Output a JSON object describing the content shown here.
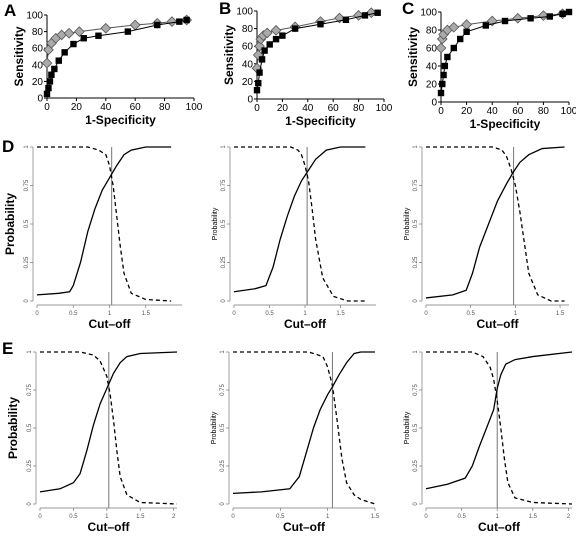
{
  "chart_data": [
    {
      "panel": "A",
      "type": "line",
      "xlabel": "1-Specificity",
      "ylabel": "Sensitivity",
      "xlim": [
        0,
        100
      ],
      "ylim": [
        0,
        100
      ],
      "xticks": [
        0,
        20,
        40,
        60,
        80,
        100
      ],
      "yticks": [
        0,
        20,
        40,
        60,
        80,
        100
      ],
      "series": [
        {
          "marker": "square",
          "color": "#000000",
          "x": [
            0,
            1,
            2,
            3,
            5,
            8,
            12,
            18,
            25,
            35,
            55,
            75,
            90,
            95
          ],
          "y": [
            5,
            12,
            20,
            28,
            35,
            45,
            55,
            65,
            72,
            75,
            80,
            88,
            92,
            94
          ]
        },
        {
          "marker": "diamond",
          "color": "#aaaaaa",
          "x": [
            0,
            1,
            3,
            6,
            10,
            15,
            22,
            40,
            60,
            75,
            85,
            95
          ],
          "y": [
            42,
            58,
            66,
            72,
            76,
            78,
            80,
            84,
            88,
            90,
            92,
            94
          ]
        }
      ]
    },
    {
      "panel": "B",
      "type": "line",
      "xlabel": "1-Specificity",
      "ylabel": "Sensitivity",
      "xlim": [
        0,
        100
      ],
      "ylim": [
        0,
        100
      ],
      "xticks": [
        0,
        20,
        40,
        60,
        80,
        100
      ],
      "yticks": [
        0,
        20,
        40,
        60,
        80,
        100
      ],
      "series": [
        {
          "marker": "square",
          "color": "#000000",
          "x": [
            0,
            1,
            2,
            4,
            6,
            10,
            15,
            20,
            30,
            50,
            70,
            85,
            95
          ],
          "y": [
            10,
            18,
            30,
            45,
            55,
            62,
            68,
            72,
            80,
            85,
            90,
            95,
            98
          ]
        },
        {
          "marker": "diamond",
          "color": "#aaaaaa",
          "x": [
            0,
            1,
            2,
            3,
            5,
            8,
            15,
            30,
            50,
            65,
            80,
            90
          ],
          "y": [
            35,
            50,
            60,
            68,
            72,
            75,
            78,
            82,
            88,
            92,
            95,
            98
          ]
        }
      ]
    },
    {
      "panel": "C",
      "type": "line",
      "xlabel": "1-Specificity",
      "ylabel": "Sensitivity",
      "xlim": [
        0,
        100
      ],
      "ylim": [
        0,
        100
      ],
      "xticks": [
        0,
        20,
        40,
        60,
        80,
        100
      ],
      "yticks": [
        0,
        20,
        40,
        60,
        80,
        100
      ],
      "series": [
        {
          "marker": "square",
          "color": "#000000",
          "x": [
            0,
            1,
            2,
            3,
            5,
            10,
            15,
            20,
            35,
            50,
            70,
            85,
            95,
            100
          ],
          "y": [
            10,
            20,
            30,
            40,
            50,
            60,
            70,
            78,
            85,
            90,
            93,
            95,
            98,
            100
          ]
        },
        {
          "marker": "diamond",
          "color": "#aaaaaa",
          "x": [
            0,
            1,
            2,
            5,
            10,
            20,
            40,
            60,
            80,
            95
          ],
          "y": [
            60,
            70,
            75,
            80,
            83,
            86,
            90,
            93,
            96,
            98
          ]
        }
      ]
    },
    {
      "panel": "D",
      "type": "line",
      "xlabel": "Cut–off",
      "ylabel": "Probability",
      "xlim": [
        0,
        2.0
      ],
      "ylim": [
        0,
        1
      ],
      "xticks": [
        0,
        0.5,
        1,
        1.5
      ],
      "yticks": [
        0,
        0.25,
        0.5,
        0.75,
        1
      ],
      "cutoff": 1.03,
      "series": [
        {
          "style": "solid",
          "x": [
            0,
            0.3,
            0.45,
            0.5,
            0.6,
            0.7,
            0.8,
            0.9,
            1.0,
            1.05,
            1.1,
            1.2,
            1.3,
            1.5,
            1.85
          ],
          "y": [
            0.04,
            0.05,
            0.06,
            0.1,
            0.25,
            0.45,
            0.6,
            0.72,
            0.8,
            0.84,
            0.88,
            0.95,
            0.98,
            1.0,
            1.0
          ]
        },
        {
          "style": "dashed",
          "x": [
            0,
            0.7,
            0.85,
            0.95,
            1.0,
            1.05,
            1.1,
            1.15,
            1.2,
            1.3,
            1.5,
            1.85
          ],
          "y": [
            1.0,
            1.0,
            0.98,
            0.95,
            0.88,
            0.75,
            0.55,
            0.35,
            0.18,
            0.05,
            0.01,
            0.0
          ]
        }
      ]
    },
    {
      "panel": "",
      "type": "line",
      "xlabel": "Cut–off",
      "ylabel": "Probability",
      "xlim": [
        0,
        2.0
      ],
      "ylim": [
        0,
        1
      ],
      "xticks": [
        0,
        0.5,
        1,
        1.5
      ],
      "yticks": [
        0,
        0.25,
        0.5,
        0.75,
        1
      ],
      "cutoff": 1.03,
      "series": [
        {
          "style": "solid",
          "x": [
            0,
            0.3,
            0.45,
            0.55,
            0.65,
            0.75,
            0.85,
            0.95,
            1.05,
            1.15,
            1.3,
            1.5,
            1.85
          ],
          "y": [
            0.06,
            0.08,
            0.1,
            0.22,
            0.4,
            0.55,
            0.68,
            0.78,
            0.85,
            0.92,
            0.98,
            1.0,
            1.0
          ]
        },
        {
          "style": "dashed",
          "x": [
            0,
            0.8,
            0.9,
            0.95,
            1.0,
            1.05,
            1.1,
            1.15,
            1.25,
            1.4,
            1.6,
            1.85
          ],
          "y": [
            1.0,
            1.0,
            0.98,
            0.95,
            0.88,
            0.78,
            0.6,
            0.4,
            0.15,
            0.03,
            0.0,
            0.0
          ]
        }
      ]
    },
    {
      "panel": "",
      "type": "line",
      "xlabel": "Cut–off",
      "ylabel": "Probability",
      "xlim": [
        0,
        1.6
      ],
      "ylim": [
        0,
        1
      ],
      "xticks": [
        0,
        0.5,
        1,
        1.5
      ],
      "yticks": [
        0,
        0.25,
        0.5,
        0.75,
        1
      ],
      "cutoff": 0.98,
      "series": [
        {
          "style": "solid",
          "x": [
            0,
            0.3,
            0.45,
            0.52,
            0.6,
            0.7,
            0.8,
            0.9,
            0.98,
            1.05,
            1.15,
            1.3,
            1.55
          ],
          "y": [
            0.02,
            0.04,
            0.07,
            0.18,
            0.35,
            0.5,
            0.65,
            0.76,
            0.84,
            0.9,
            0.95,
            0.99,
            1.0
          ]
        },
        {
          "style": "dashed",
          "x": [
            0,
            0.75,
            0.85,
            0.9,
            0.95,
            1.0,
            1.05,
            1.1,
            1.15,
            1.25,
            1.4,
            1.55
          ],
          "y": [
            1.0,
            1.0,
            0.98,
            0.94,
            0.86,
            0.75,
            0.58,
            0.38,
            0.18,
            0.04,
            0.0,
            0.0
          ]
        }
      ]
    },
    {
      "panel": "E",
      "type": "line",
      "xlabel": "Cut–off",
      "ylabel": "Probability",
      "xlim": [
        0,
        2.05
      ],
      "ylim": [
        0,
        1
      ],
      "xticks": [
        0,
        0.5,
        1,
        1.5,
        2
      ],
      "yticks": [
        0,
        0.25,
        0.5,
        0.75,
        1
      ],
      "cutoff": 1.03,
      "series": [
        {
          "style": "solid",
          "x": [
            0,
            0.3,
            0.5,
            0.6,
            0.7,
            0.8,
            0.9,
            1.0,
            1.1,
            1.2,
            1.3,
            1.5,
            2.05
          ],
          "y": [
            0.08,
            0.1,
            0.14,
            0.2,
            0.35,
            0.52,
            0.66,
            0.76,
            0.86,
            0.93,
            0.97,
            0.99,
            1.0
          ]
        },
        {
          "style": "dashed",
          "x": [
            0,
            0.6,
            0.8,
            0.9,
            1.0,
            1.05,
            1.1,
            1.15,
            1.2,
            1.3,
            1.5,
            2.05
          ],
          "y": [
            1.0,
            1.0,
            0.98,
            0.94,
            0.84,
            0.72,
            0.55,
            0.35,
            0.18,
            0.06,
            0.01,
            0.0
          ]
        }
      ]
    },
    {
      "panel": "",
      "type": "line",
      "xlabel": "Cut–off",
      "ylabel": "Probability",
      "xlim": [
        0,
        1.5
      ],
      "ylim": [
        0,
        1
      ],
      "xticks": [
        0,
        0.5,
        1,
        1.5
      ],
      "yticks": [
        0,
        0.25,
        0.5,
        0.75,
        1
      ],
      "cutoff": 1.05,
      "series": [
        {
          "style": "solid",
          "x": [
            0,
            0.3,
            0.6,
            0.7,
            0.78,
            0.85,
            0.92,
            1.0,
            1.05,
            1.12,
            1.2,
            1.28,
            1.35,
            1.5
          ],
          "y": [
            0.07,
            0.08,
            0.1,
            0.18,
            0.35,
            0.5,
            0.62,
            0.72,
            0.77,
            0.85,
            0.93,
            0.99,
            1.0,
            1.0
          ]
        },
        {
          "style": "dashed",
          "x": [
            0,
            0.8,
            0.95,
            1.0,
            1.05,
            1.1,
            1.15,
            1.2,
            1.28,
            1.35,
            1.45,
            1.5
          ],
          "y": [
            1.0,
            1.0,
            0.97,
            0.9,
            0.78,
            0.55,
            0.3,
            0.14,
            0.06,
            0.03,
            0.01,
            0.0
          ]
        }
      ]
    },
    {
      "panel": "",
      "type": "line",
      "xlabel": "Cut–off",
      "ylabel": "Probability",
      "xlim": [
        0,
        2.05
      ],
      "ylim": [
        0,
        1
      ],
      "xticks": [
        0,
        0.5,
        1,
        1.5,
        2
      ],
      "yticks": [
        0,
        0.25,
        0.5,
        0.75,
        1
      ],
      "cutoff": 1.0,
      "series": [
        {
          "style": "solid",
          "x": [
            0,
            0.3,
            0.55,
            0.65,
            0.75,
            0.85,
            0.95,
            1.0,
            1.05,
            1.12,
            1.25,
            1.5,
            2.05
          ],
          "y": [
            0.1,
            0.13,
            0.17,
            0.25,
            0.38,
            0.5,
            0.62,
            0.76,
            0.85,
            0.92,
            0.95,
            0.97,
            1.0
          ]
        },
        {
          "style": "dashed",
          "x": [
            0,
            0.65,
            0.8,
            0.9,
            0.95,
            1.0,
            1.05,
            1.1,
            1.15,
            1.25,
            1.5,
            2.05
          ],
          "y": [
            1.0,
            1.0,
            0.97,
            0.9,
            0.82,
            0.68,
            0.5,
            0.3,
            0.14,
            0.04,
            0.01,
            0.0
          ]
        }
      ]
    }
  ]
}
